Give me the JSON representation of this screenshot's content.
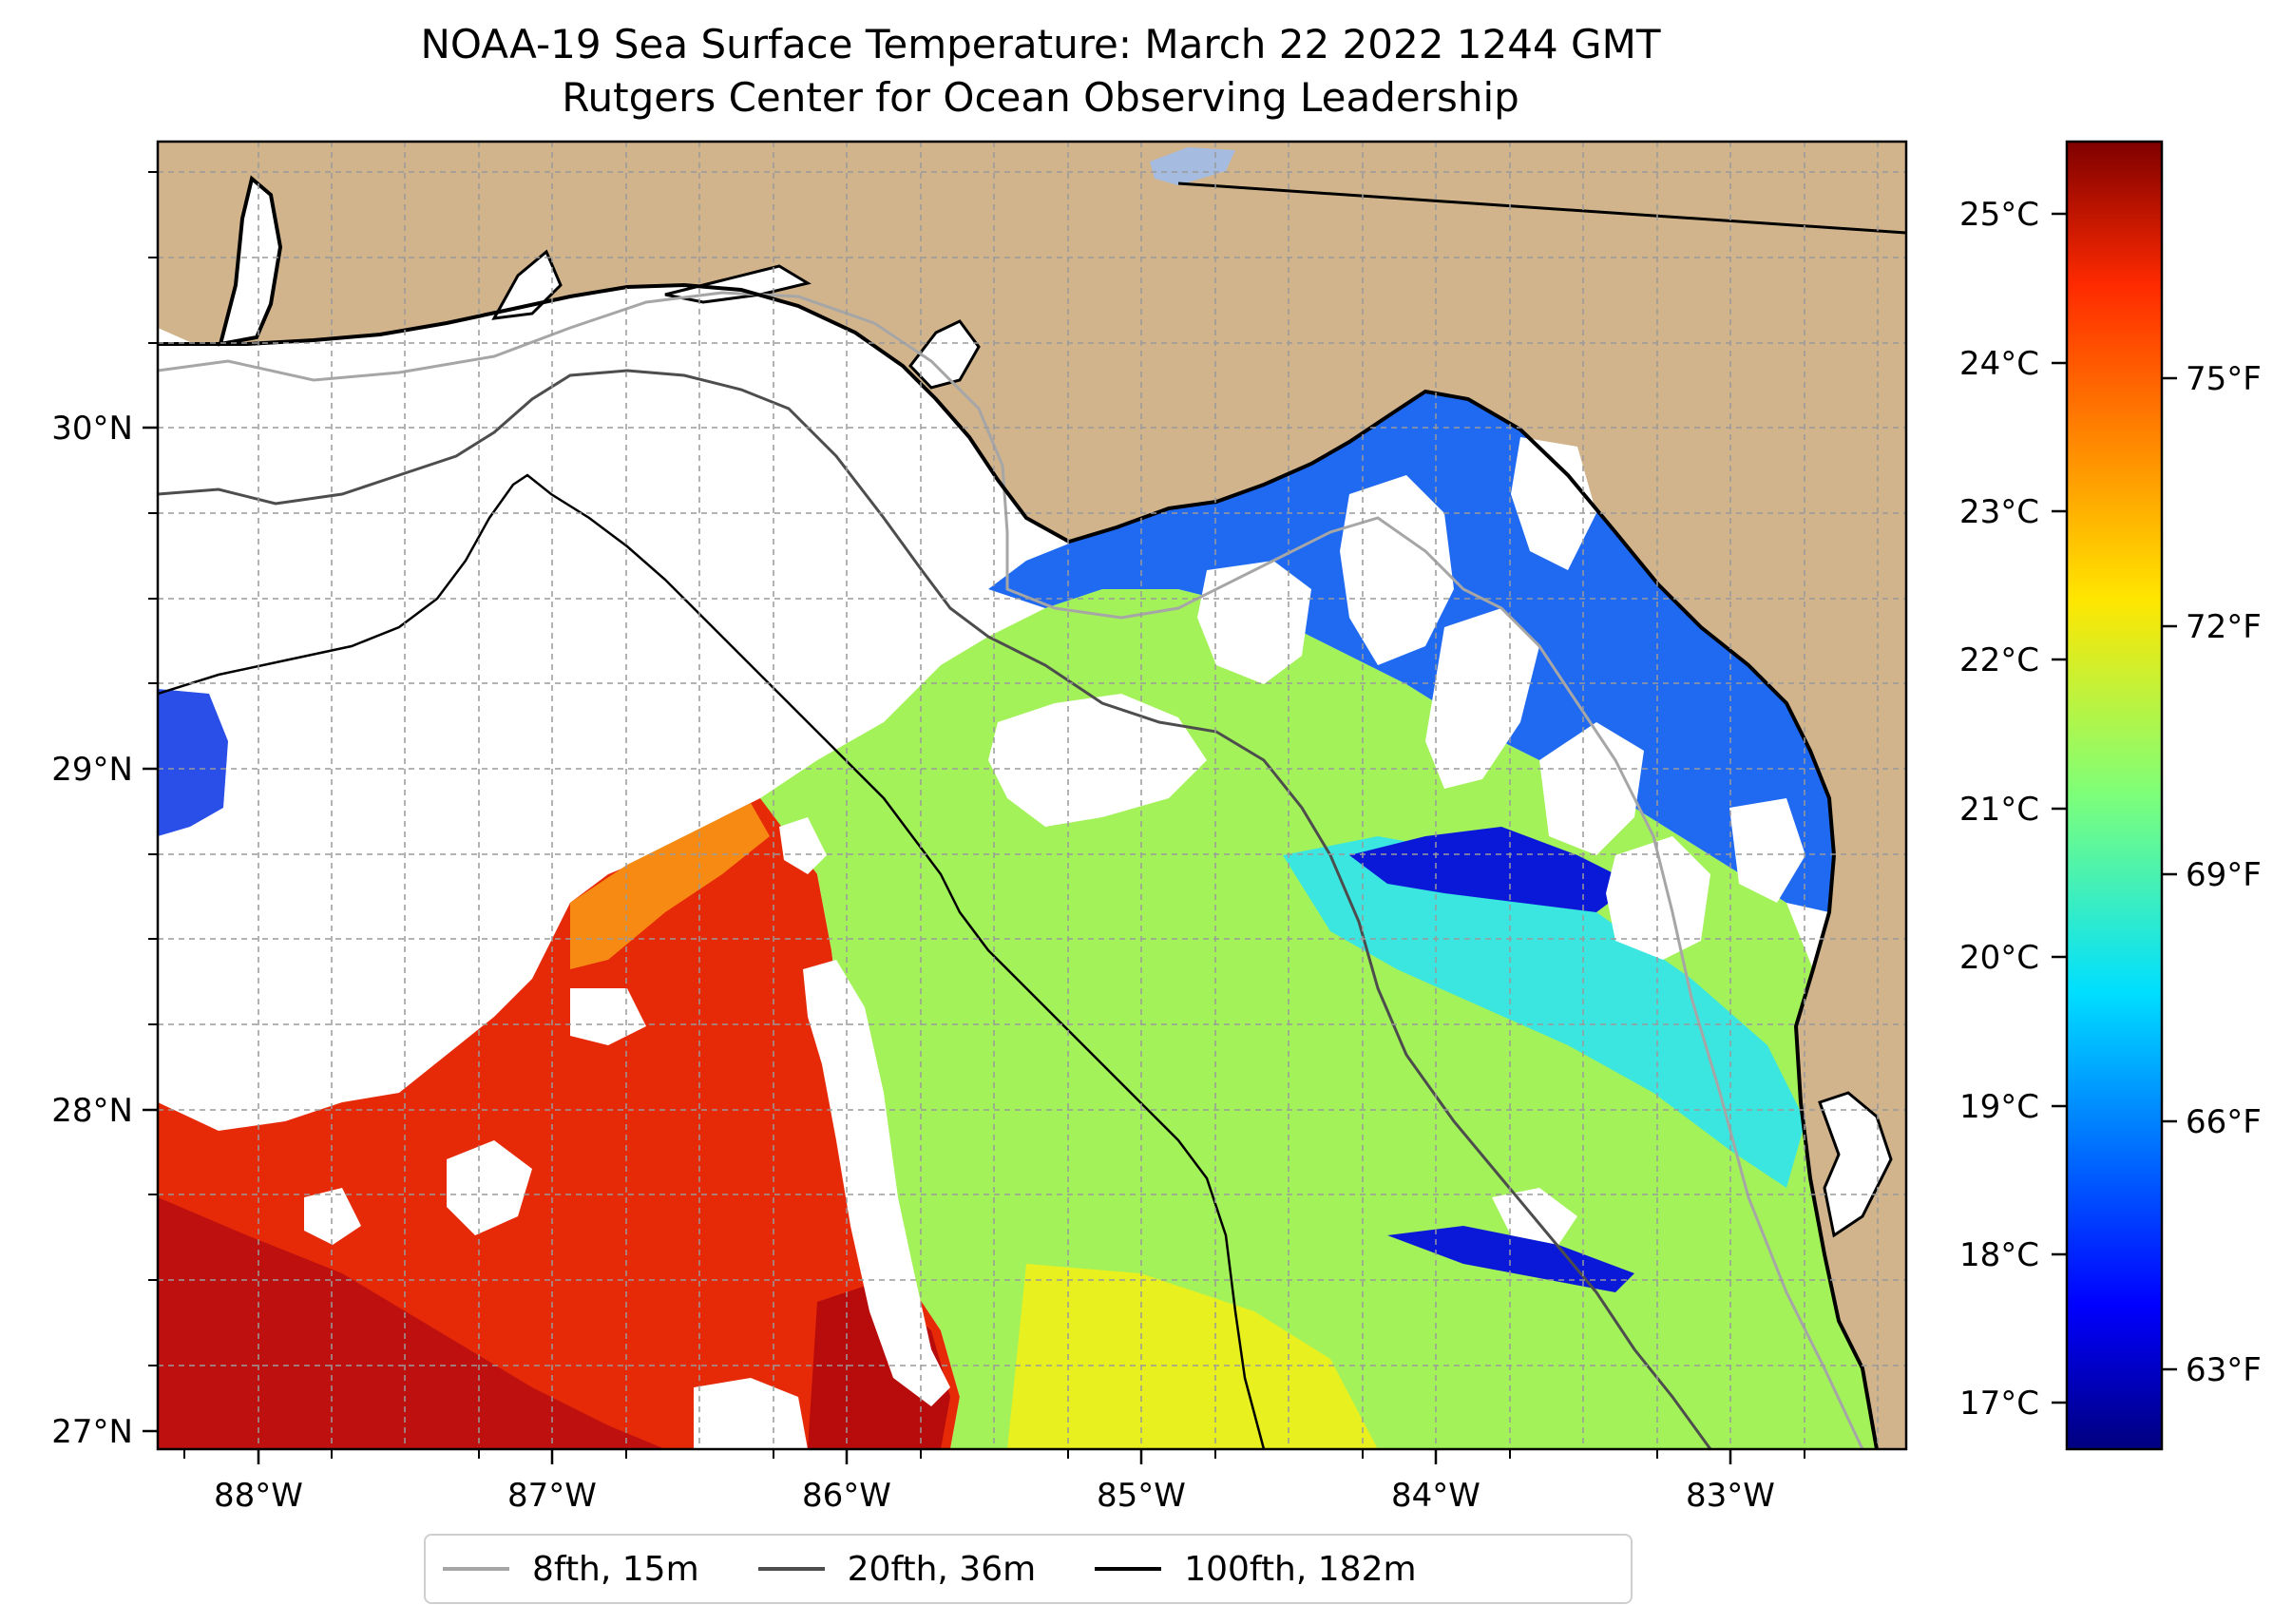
{
  "title": {
    "line1": "NOAA-19 Sea Surface Temperature: March 22 2022 1244 GMT",
    "line2": "Rutgers Center for Ocean Observing Leadership"
  },
  "map": {
    "lon_ticks": [
      "88°W",
      "87°W",
      "86°W",
      "85°W",
      "84°W",
      "83°W"
    ],
    "lat_ticks": [
      "30°N",
      "29°N",
      "28°N",
      "27°N"
    ],
    "land_color": "#d2b48c",
    "no_data_color": "#ffffff"
  },
  "colorbar": {
    "celsius_ticks": [
      "25°C",
      "24°C",
      "23°C",
      "22°C",
      "21°C",
      "20°C",
      "19°C",
      "18°C",
      "17°C"
    ],
    "fahrenheit_ticks": [
      "75°F",
      "72°F",
      "69°F",
      "66°F",
      "63°F"
    ],
    "colormap": "jet"
  },
  "legend": {
    "items": [
      {
        "label": "8fth, 15m",
        "color": "#a6a6a6"
      },
      {
        "label": "20fth, 36m",
        "color": "#4d4d4d"
      },
      {
        "label": "100fth, 182m",
        "color": "#000000"
      }
    ]
  }
}
